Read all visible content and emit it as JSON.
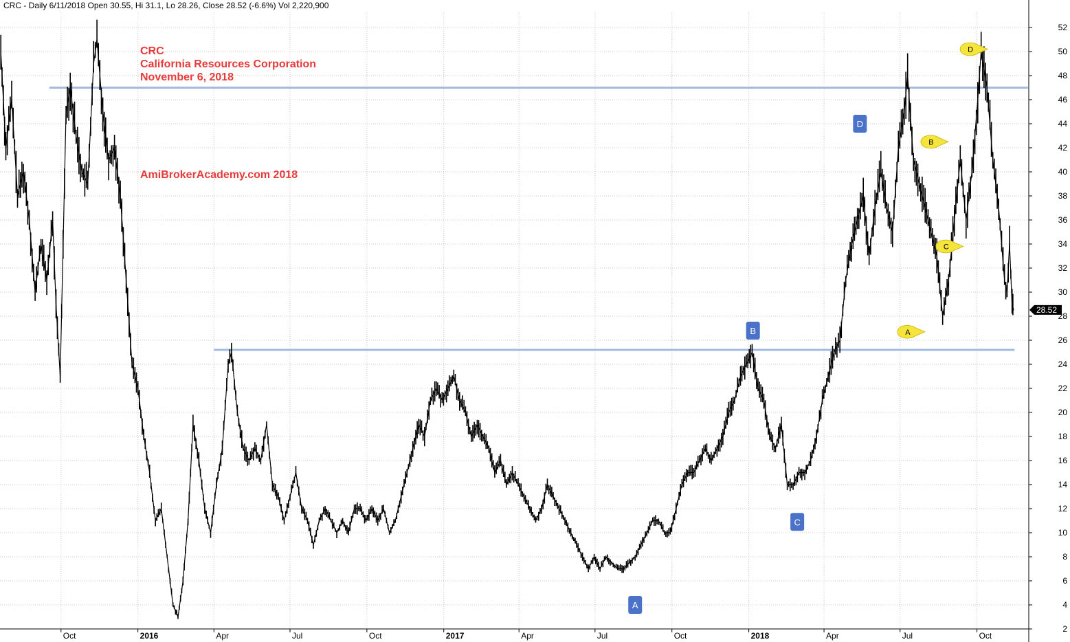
{
  "header": {
    "text": "CRC - Daily 6/11/2018 Open 30.55, Hi 31.1, Lo 28.26, Close 28.52 (-6.6%) Vol 2,220,900"
  },
  "annotations": {
    "ticker": "CRC",
    "company": "California Resources Corporation",
    "date": "November 6, 2018",
    "site": "AmiBrokerAcademy.com  2018",
    "color": "#e83a3a"
  },
  "last_price_label": "28.52",
  "chart_data": {
    "type": "line",
    "y_range": [
      2,
      52
    ],
    "y_ticks": [
      2,
      4,
      6,
      8,
      10,
      12,
      14,
      16,
      18,
      20,
      22,
      24,
      26,
      28,
      30,
      32,
      34,
      36,
      38,
      40,
      42,
      44,
      46,
      48,
      50,
      52
    ],
    "x_range": [
      "2015-07-20",
      "2018-12-02"
    ],
    "x_ticks": [
      {
        "label": "Oct",
        "date": "2015-10-01",
        "bold": false
      },
      {
        "label": "2016",
        "date": "2016-01-01",
        "bold": true
      },
      {
        "label": "Apr",
        "date": "2016-04-01",
        "bold": false
      },
      {
        "label": "Jul",
        "date": "2016-07-01",
        "bold": false
      },
      {
        "label": "Oct",
        "date": "2016-10-01",
        "bold": false
      },
      {
        "label": "2017",
        "date": "2017-01-01",
        "bold": true
      },
      {
        "label": "Apr",
        "date": "2017-04-01",
        "bold": false
      },
      {
        "label": "Jul",
        "date": "2017-07-01",
        "bold": false
      },
      {
        "label": "Oct",
        "date": "2017-10-01",
        "bold": false
      },
      {
        "label": "2018",
        "date": "2018-01-01",
        "bold": true
      },
      {
        "label": "Apr",
        "date": "2018-04-01",
        "bold": false
      },
      {
        "label": "Jul",
        "date": "2018-07-01",
        "bold": false
      },
      {
        "label": "Oct",
        "date": "2018-10-01",
        "bold": false
      }
    ],
    "grid": true,
    "series": [
      {
        "color": "#000000",
        "points": [
          [
            "2015-07-21",
            50
          ],
          [
            "2015-07-27",
            42
          ],
          [
            "2015-08-03",
            46
          ],
          [
            "2015-08-10",
            38
          ],
          [
            "2015-08-17",
            40
          ],
          [
            "2015-08-24",
            36
          ],
          [
            "2015-08-31",
            30
          ],
          [
            "2015-09-07",
            34
          ],
          [
            "2015-09-14",
            31
          ],
          [
            "2015-09-21",
            36
          ],
          [
            "2015-09-25",
            29
          ],
          [
            "2015-09-30",
            23
          ],
          [
            "2015-10-07",
            45
          ],
          [
            "2015-10-12",
            47
          ],
          [
            "2015-10-19",
            43
          ],
          [
            "2015-10-26",
            40
          ],
          [
            "2015-11-02",
            39
          ],
          [
            "2015-11-09",
            49
          ],
          [
            "2015-11-13",
            51
          ],
          [
            "2015-11-20",
            45
          ],
          [
            "2015-11-27",
            41
          ],
          [
            "2015-12-04",
            42
          ],
          [
            "2015-12-11",
            38
          ],
          [
            "2015-12-18",
            31
          ],
          [
            "2015-12-25",
            24
          ],
          [
            "2016-01-01",
            22
          ],
          [
            "2016-01-08",
            18
          ],
          [
            "2016-01-15",
            15
          ],
          [
            "2016-01-22",
            11
          ],
          [
            "2016-01-29",
            12
          ],
          [
            "2016-02-05",
            8
          ],
          [
            "2016-02-12",
            4
          ],
          [
            "2016-02-18",
            3
          ],
          [
            "2016-02-24",
            6
          ],
          [
            "2016-03-01",
            11
          ],
          [
            "2016-03-07",
            19
          ],
          [
            "2016-03-14",
            16
          ],
          [
            "2016-03-21",
            12
          ],
          [
            "2016-03-28",
            10
          ],
          [
            "2016-04-04",
            14
          ],
          [
            "2016-04-11",
            17
          ],
          [
            "2016-04-18",
            24
          ],
          [
            "2016-04-22",
            25
          ],
          [
            "2016-04-29",
            20
          ],
          [
            "2016-05-06",
            17
          ],
          [
            "2016-05-13",
            16
          ],
          [
            "2016-05-20",
            17
          ],
          [
            "2016-05-27",
            16
          ],
          [
            "2016-06-03",
            19
          ],
          [
            "2016-06-10",
            14
          ],
          [
            "2016-06-17",
            13
          ],
          [
            "2016-06-24",
            11
          ],
          [
            "2016-07-01",
            13
          ],
          [
            "2016-07-08",
            15
          ],
          [
            "2016-07-15",
            12
          ],
          [
            "2016-07-22",
            11
          ],
          [
            "2016-07-29",
            9
          ],
          [
            "2016-08-05",
            11
          ],
          [
            "2016-08-12",
            12
          ],
          [
            "2016-08-19",
            11
          ],
          [
            "2016-08-26",
            10
          ],
          [
            "2016-09-02",
            11
          ],
          [
            "2016-09-09",
            10
          ],
          [
            "2016-09-16",
            12
          ],
          [
            "2016-09-23",
            12
          ],
          [
            "2016-09-30",
            11
          ],
          [
            "2016-10-07",
            12
          ],
          [
            "2016-10-14",
            11
          ],
          [
            "2016-10-21",
            12
          ],
          [
            "2016-10-28",
            10
          ],
          [
            "2016-11-04",
            11
          ],
          [
            "2016-11-11",
            13
          ],
          [
            "2016-11-18",
            15
          ],
          [
            "2016-11-25",
            17
          ],
          [
            "2016-12-02",
            19
          ],
          [
            "2016-12-09",
            18
          ],
          [
            "2016-12-16",
            21
          ],
          [
            "2016-12-23",
            22
          ],
          [
            "2016-12-30",
            21
          ],
          [
            "2017-01-06",
            22
          ],
          [
            "2017-01-13",
            23
          ],
          [
            "2017-01-20",
            21
          ],
          [
            "2017-01-27",
            20
          ],
          [
            "2017-02-03",
            18
          ],
          [
            "2017-02-10",
            19
          ],
          [
            "2017-02-17",
            18
          ],
          [
            "2017-02-24",
            17
          ],
          [
            "2017-03-03",
            15
          ],
          [
            "2017-03-10",
            16
          ],
          [
            "2017-03-17",
            14
          ],
          [
            "2017-03-24",
            15
          ],
          [
            "2017-03-31",
            14
          ],
          [
            "2017-04-07",
            13
          ],
          [
            "2017-04-14",
            12
          ],
          [
            "2017-04-21",
            11
          ],
          [
            "2017-04-28",
            12
          ],
          [
            "2017-05-05",
            14
          ],
          [
            "2017-05-12",
            13
          ],
          [
            "2017-05-19",
            12
          ],
          [
            "2017-05-26",
            11
          ],
          [
            "2017-06-02",
            10
          ],
          [
            "2017-06-09",
            9
          ],
          [
            "2017-06-16",
            8
          ],
          [
            "2017-06-23",
            7
          ],
          [
            "2017-06-30",
            8
          ],
          [
            "2017-07-07",
            7
          ],
          [
            "2017-07-14",
            8
          ],
          [
            "2017-07-21",
            7.5
          ],
          [
            "2017-07-28",
            7
          ],
          [
            "2017-08-04",
            7
          ],
          [
            "2017-08-11",
            7.5
          ],
          [
            "2017-08-18",
            8
          ],
          [
            "2017-08-25",
            9
          ],
          [
            "2017-09-01",
            10
          ],
          [
            "2017-09-08",
            11
          ],
          [
            "2017-09-15",
            11
          ],
          [
            "2017-09-22",
            10
          ],
          [
            "2017-09-29",
            10
          ],
          [
            "2017-10-06",
            12
          ],
          [
            "2017-10-13",
            14
          ],
          [
            "2017-10-20",
            15
          ],
          [
            "2017-10-27",
            15
          ],
          [
            "2017-11-03",
            16
          ],
          [
            "2017-11-10",
            17
          ],
          [
            "2017-11-17",
            16
          ],
          [
            "2017-11-24",
            17
          ],
          [
            "2017-12-01",
            18
          ],
          [
            "2017-12-08",
            20
          ],
          [
            "2017-12-15",
            21
          ],
          [
            "2017-12-22",
            23
          ],
          [
            "2017-12-29",
            24
          ],
          [
            "2018-01-05",
            25
          ],
          [
            "2018-01-12",
            22
          ],
          [
            "2018-01-19",
            21
          ],
          [
            "2018-01-26",
            18
          ],
          [
            "2018-02-02",
            17
          ],
          [
            "2018-02-09",
            19
          ],
          [
            "2018-02-16",
            14
          ],
          [
            "2018-02-23",
            14
          ],
          [
            "2018-03-02",
            15
          ],
          [
            "2018-03-09",
            15
          ],
          [
            "2018-03-16",
            16
          ],
          [
            "2018-03-23",
            18
          ],
          [
            "2018-03-30",
            21
          ],
          [
            "2018-04-06",
            23
          ],
          [
            "2018-04-13",
            25
          ],
          [
            "2018-04-20",
            26
          ],
          [
            "2018-04-27",
            31
          ],
          [
            "2018-05-04",
            34
          ],
          [
            "2018-05-11",
            36
          ],
          [
            "2018-05-18",
            38
          ],
          [
            "2018-05-25",
            33
          ],
          [
            "2018-06-01",
            37
          ],
          [
            "2018-06-08",
            40
          ],
          [
            "2018-06-15",
            37
          ],
          [
            "2018-06-22",
            35
          ],
          [
            "2018-06-29",
            42
          ],
          [
            "2018-07-06",
            45
          ],
          [
            "2018-07-10",
            48
          ],
          [
            "2018-07-17",
            41
          ],
          [
            "2018-07-24",
            39
          ],
          [
            "2018-07-31",
            37
          ],
          [
            "2018-08-07",
            35
          ],
          [
            "2018-08-14",
            33
          ],
          [
            "2018-08-21",
            28
          ],
          [
            "2018-08-28",
            31
          ],
          [
            "2018-09-04",
            36
          ],
          [
            "2018-09-11",
            41
          ],
          [
            "2018-09-18",
            36
          ],
          [
            "2018-09-25",
            40
          ],
          [
            "2018-10-02",
            46
          ],
          [
            "2018-10-06",
            50
          ],
          [
            "2018-10-13",
            47
          ],
          [
            "2018-10-20",
            41
          ],
          [
            "2018-10-27",
            37
          ],
          [
            "2018-11-03",
            31
          ],
          [
            "2018-11-06",
            30
          ],
          [
            "2018-11-09",
            34
          ],
          [
            "2018-11-12",
            29
          ],
          [
            "2018-11-14",
            28.5
          ]
        ]
      }
    ],
    "horizontal_lines": [
      {
        "value": 47,
        "from": "2015-09-17",
        "to": "2018-12-01",
        "color": "#a3bbe0"
      },
      {
        "value": 25.2,
        "from": "2016-04-01",
        "to": "2018-11-15",
        "color": "#a3bbe0"
      }
    ],
    "box_labels": [
      {
        "text": "A",
        "date": "2017-08-18",
        "value": 4.0
      },
      {
        "text": "B",
        "date": "2018-01-06",
        "value": 26.8
      },
      {
        "text": "C",
        "date": "2018-02-28",
        "value": 10.9
      },
      {
        "text": "D",
        "date": "2018-05-14",
        "value": 44.0
      }
    ],
    "balloon_labels": [
      {
        "text": "A",
        "date": "2018-07-11",
        "value": 26.7
      },
      {
        "text": "B",
        "date": "2018-08-08",
        "value": 42.5
      },
      {
        "text": "C",
        "date": "2018-08-26",
        "value": 33.8
      },
      {
        "text": "D",
        "date": "2018-09-24",
        "value": 50.2
      }
    ]
  }
}
